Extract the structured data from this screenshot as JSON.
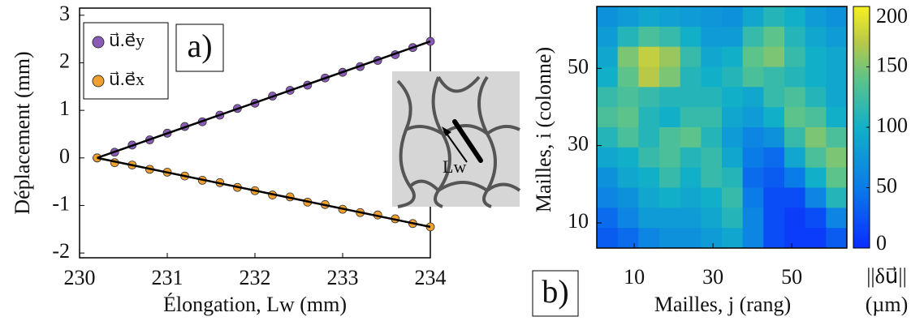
{
  "chart_data": [
    {
      "type": "scatter",
      "panel_label": "a)",
      "x_label": "Élongation, Lw (mm)",
      "y_label": "Déplacement (mm)",
      "xlim": [
        230,
        234
      ],
      "ylim": [
        -2.1,
        3.15
      ],
      "xticks": [
        230,
        231,
        232,
        233,
        234
      ],
      "yticks": [
        -2,
        -1,
        0,
        1,
        2,
        3
      ],
      "inset_label": "Lw",
      "x": [
        230.2,
        230.4,
        230.6,
        230.8,
        231.0,
        231.2,
        231.4,
        231.6,
        231.8,
        232.0,
        232.2,
        232.4,
        232.6,
        232.8,
        233.0,
        233.2,
        233.4,
        233.6,
        233.8,
        234.0
      ],
      "series": [
        {
          "name": "u⃗.e⃗y",
          "color": "#8a5cb8",
          "values": [
            0,
            0.12,
            0.27,
            0.38,
            0.52,
            0.66,
            0.76,
            0.9,
            1.04,
            1.15,
            1.3,
            1.42,
            1.53,
            1.68,
            1.8,
            1.92,
            2.05,
            2.17,
            2.32,
            2.45
          ],
          "fit_x": [
            230.2,
            234
          ],
          "fit_values": [
            0,
            2.45
          ]
        },
        {
          "name": "u⃗.e⃗x",
          "color": "#f0a030",
          "values": [
            0,
            -0.1,
            -0.15,
            -0.24,
            -0.3,
            -0.38,
            -0.47,
            -0.52,
            -0.62,
            -0.69,
            -0.78,
            -0.82,
            -0.93,
            -0.98,
            -1.08,
            -1.15,
            -1.2,
            -1.28,
            -1.38,
            -1.45
          ],
          "fit_x": [
            230.2,
            234
          ],
          "fit_values": [
            0,
            -1.45
          ]
        }
      ]
    },
    {
      "type": "heatmap",
      "panel_label": "b)",
      "x_label": "Mailles, j (rang)",
      "y_label": "Mailles, i (colonne)",
      "xlim": [
        0.5,
        64
      ],
      "ylim": [
        3.5,
        66
      ],
      "xticks": [
        10,
        30,
        50
      ],
      "yticks": [
        10,
        30,
        50
      ],
      "z": [
        [
          70,
          80,
          90,
          85,
          80,
          75,
          70,
          90,
          110,
          100,
          80,
          70
        ],
        [
          80,
          110,
          130,
          120,
          100,
          80,
          80,
          120,
          140,
          110,
          90,
          80
        ],
        [
          90,
          150,
          175,
          160,
          120,
          90,
          100,
          140,
          150,
          120,
          100,
          90
        ],
        [
          100,
          140,
          170,
          150,
          110,
          100,
          110,
          130,
          120,
          110,
          100,
          90
        ],
        [
          120,
          130,
          120,
          110,
          110,
          110,
          100,
          90,
          120,
          130,
          110,
          90
        ],
        [
          130,
          140,
          110,
          100,
          120,
          120,
          90,
          80,
          100,
          140,
          130,
          100
        ],
        [
          110,
          130,
          110,
          130,
          140,
          110,
          80,
          60,
          70,
          120,
          150,
          130
        ],
        [
          90,
          100,
          120,
          130,
          110,
          120,
          90,
          50,
          40,
          90,
          130,
          150
        ],
        [
          70,
          90,
          100,
          120,
          100,
          120,
          110,
          40,
          30,
          50,
          100,
          140
        ],
        [
          60,
          70,
          90,
          100,
          90,
          100,
          120,
          50,
          20,
          20,
          60,
          110
        ],
        [
          40,
          60,
          80,
          80,
          80,
          90,
          110,
          60,
          20,
          10,
          20,
          60
        ],
        [
          30,
          40,
          60,
          70,
          70,
          80,
          90,
          60,
          20,
          10,
          10,
          30
        ]
      ],
      "clim": [
        0,
        200
      ],
      "cticks": [
        0,
        50,
        100,
        150,
        200
      ],
      "colorbar_label": "||δu⃗||",
      "colorbar_unit": "(µm)"
    }
  ]
}
